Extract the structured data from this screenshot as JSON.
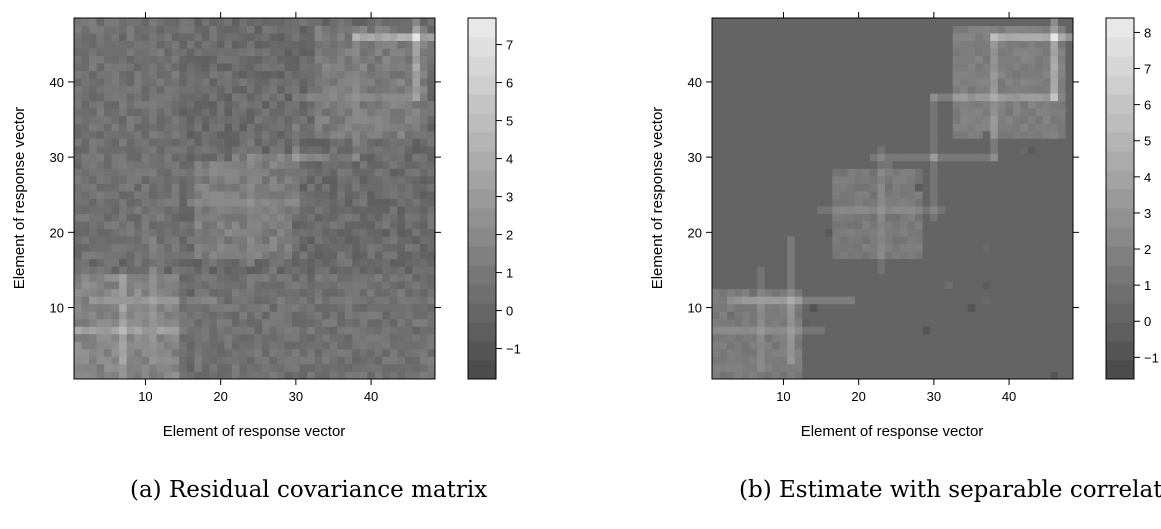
{
  "panels": [
    {
      "id": "a",
      "caption": "(a) Residual covariance matrix",
      "chart_data": {
        "type": "heatmap",
        "title": "",
        "xlabel": "Element of response vector",
        "ylabel": "Element of response vector",
        "xlim": [
          0.5,
          48.5
        ],
        "ylim": [
          0.5,
          48.5
        ],
        "x_ticks": [
          10,
          20,
          30,
          40
        ],
        "y_ticks": [
          10,
          20,
          30,
          40
        ],
        "colorbar": {
          "min": -1.8,
          "max": 7.7,
          "ticks": [
            -1,
            0,
            1,
            2,
            3,
            4,
            5,
            6,
            7
          ]
        },
        "grid": false,
        "blocks": [
          {
            "from": 1,
            "to": 14,
            "value": 1.8
          },
          {
            "from": 17,
            "to": 29,
            "value": 1.3
          },
          {
            "from": 33,
            "to": 47,
            "value": 1.2
          }
        ],
        "hotspots": [
          {
            "row": 7,
            "col": 7,
            "value": 4.8
          },
          {
            "row": 11,
            "col": 11,
            "value": 3.5
          },
          {
            "row": 24,
            "col": 24,
            "value": 2.5
          },
          {
            "row": 30,
            "col": 30,
            "value": 3.0
          },
          {
            "row": 38,
            "col": 38,
            "value": 2.5
          },
          {
            "row": 46,
            "col": 46,
            "value": 7.3
          }
        ]
      }
    },
    {
      "id": "b",
      "caption": "(b) Estimate with separable correlation",
      "chart_data": {
        "type": "heatmap",
        "title": "",
        "xlabel": "Element of response vector",
        "ylabel": "Element of response vector",
        "xlim": [
          0.5,
          48.5
        ],
        "ylim": [
          0.5,
          48.5
        ],
        "x_ticks": [
          10,
          20,
          30,
          40
        ],
        "y_ticks": [
          10,
          20,
          30,
          40
        ],
        "colorbar": {
          "min": -1.6,
          "max": 8.4,
          "ticks": [
            -1,
            0,
            1,
            2,
            3,
            4,
            5,
            6,
            7,
            8
          ]
        },
        "grid": false,
        "background": 0.1,
        "blocks": [
          {
            "from": 1,
            "to": 12,
            "value": 1.5
          },
          {
            "from": 17,
            "to": 28,
            "value": 1.4
          },
          {
            "from": 33,
            "to": 47,
            "value": 1.7
          }
        ],
        "hotspots": [
          {
            "row": 7,
            "col": 7,
            "value": 3.2
          },
          {
            "row": 11,
            "col": 11,
            "value": 4.5
          },
          {
            "row": 23,
            "col": 23,
            "value": 3.0
          },
          {
            "row": 30,
            "col": 30,
            "value": 3.5
          },
          {
            "row": 38,
            "col": 38,
            "value": 4.5
          },
          {
            "row": 46,
            "col": 46,
            "value": 8.0
          }
        ]
      }
    }
  ]
}
